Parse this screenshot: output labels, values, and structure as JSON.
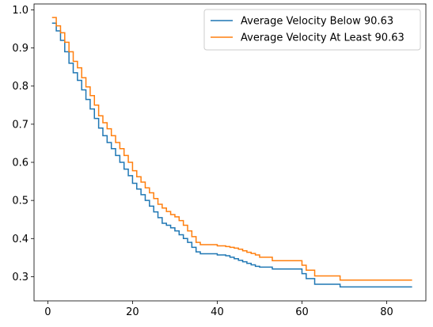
{
  "chart_data": {
    "type": "line",
    "title": "",
    "xlabel": "",
    "ylabel": "",
    "xlim": [
      -3.25,
      89.25
    ],
    "ylim": [
      0.2365,
      1.0155
    ],
    "grid": false,
    "legend_position": "top-right",
    "x_ticks": [
      0,
      20,
      40,
      60,
      80
    ],
    "x_tick_labels": [
      "0",
      "20",
      "40",
      "60",
      "80"
    ],
    "y_ticks": [
      0.3,
      0.4,
      0.5,
      0.6,
      0.7,
      0.8,
      0.9,
      1.0
    ],
    "y_tick_labels": [
      "0.3",
      "0.4",
      "0.5",
      "0.6",
      "0.7",
      "0.8",
      "0.9",
      "1.0"
    ],
    "step_style": "post",
    "series": [
      {
        "name": "Average Velocity Below 90.63",
        "color": "#1f77b4",
        "x": [
          1,
          2,
          3,
          4,
          5,
          6,
          7,
          8,
          9,
          10,
          11,
          12,
          13,
          14,
          15,
          16,
          17,
          18,
          19,
          20,
          21,
          22,
          23,
          24,
          25,
          26,
          27,
          28,
          29,
          30,
          31,
          32,
          33,
          34,
          35,
          36,
          40,
          42,
          43,
          44,
          45,
          46,
          47,
          48,
          49,
          50,
          53,
          59,
          60,
          61,
          63,
          69,
          86
        ],
        "y": [
          0.965,
          0.945,
          0.92,
          0.89,
          0.86,
          0.835,
          0.815,
          0.79,
          0.765,
          0.74,
          0.715,
          0.69,
          0.67,
          0.652,
          0.636,
          0.618,
          0.6,
          0.582,
          0.565,
          0.545,
          0.53,
          0.515,
          0.5,
          0.485,
          0.47,
          0.455,
          0.44,
          0.435,
          0.428,
          0.42,
          0.41,
          0.4,
          0.39,
          0.377,
          0.365,
          0.36,
          0.357,
          0.355,
          0.351,
          0.347,
          0.343,
          0.339,
          0.335,
          0.331,
          0.327,
          0.325,
          0.32,
          0.32,
          0.308,
          0.295,
          0.28,
          0.273,
          0.273
        ]
      },
      {
        "name": "Average Velocity At Least 90.63",
        "color": "#ff7f0e",
        "x": [
          1,
          2,
          3,
          4,
          5,
          6,
          7,
          8,
          9,
          10,
          11,
          12,
          13,
          14,
          15,
          16,
          17,
          18,
          19,
          20,
          21,
          22,
          23,
          24,
          25,
          26,
          27,
          28,
          29,
          30,
          31,
          32,
          33,
          34,
          35,
          36,
          40,
          42,
          43,
          44,
          45,
          46,
          47,
          48,
          49,
          50,
          53,
          59,
          60,
          61,
          63,
          69,
          86
        ],
        "y": [
          0.98,
          0.958,
          0.94,
          0.915,
          0.89,
          0.865,
          0.848,
          0.822,
          0.798,
          0.775,
          0.75,
          0.722,
          0.704,
          0.688,
          0.67,
          0.652,
          0.636,
          0.618,
          0.6,
          0.578,
          0.562,
          0.548,
          0.533,
          0.52,
          0.505,
          0.49,
          0.48,
          0.471,
          0.463,
          0.457,
          0.447,
          0.435,
          0.42,
          0.405,
          0.39,
          0.384,
          0.381,
          0.379,
          0.377,
          0.375,
          0.372,
          0.368,
          0.364,
          0.361,
          0.357,
          0.351,
          0.342,
          0.342,
          0.33,
          0.317,
          0.302,
          0.291,
          0.291
        ]
      }
    ]
  }
}
